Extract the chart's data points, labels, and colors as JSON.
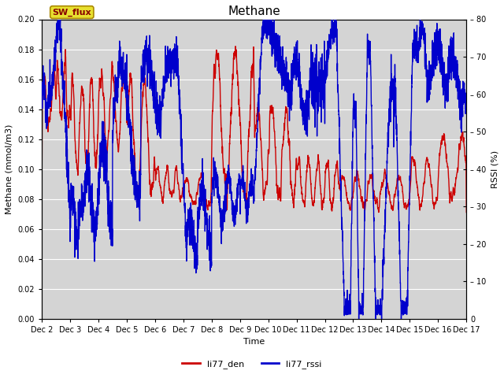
{
  "title": "Methane",
  "ylabel_left": "Methane (mmol/m3)",
  "ylabel_right": "RSSI (%)",
  "xlabel": "Time",
  "ylim_left": [
    0.0,
    0.2
  ],
  "ylim_right": [
    0,
    80
  ],
  "yticks_left": [
    0.0,
    0.02,
    0.04,
    0.06,
    0.08,
    0.1,
    0.12,
    0.14,
    0.16,
    0.18,
    0.2
  ],
  "yticks_right": [
    0,
    10,
    20,
    30,
    40,
    50,
    60,
    70,
    80
  ],
  "background_color": "#d4d4d4",
  "line_color_red": "#cc0000",
  "line_color_blue": "#0000cc",
  "legend_box_label": "SW_flux",
  "legend_box_facecolor": "#e8e030",
  "legend_box_edgecolor": "#aa8800",
  "legend_box_text_color": "#880000",
  "legend_label_red": "li77_den",
  "legend_label_blue": "li77_rssi",
  "xticklabels": [
    "Dec 2",
    "Dec 3",
    "Dec 4",
    "Dec 5",
    "Dec 6",
    "Dec 7",
    "Dec 8",
    "Dec 9",
    "Dec 10",
    "Dec 11",
    "Dec 12",
    "Dec 13",
    "Dec 14",
    "Dec 15",
    "Dec 16",
    "Dec 17"
  ],
  "title_fontsize": 11,
  "axis_label_fontsize": 8,
  "tick_fontsize": 7,
  "linewidth": 1.0,
  "figsize": [
    6.4,
    4.8
  ],
  "dpi": 100
}
